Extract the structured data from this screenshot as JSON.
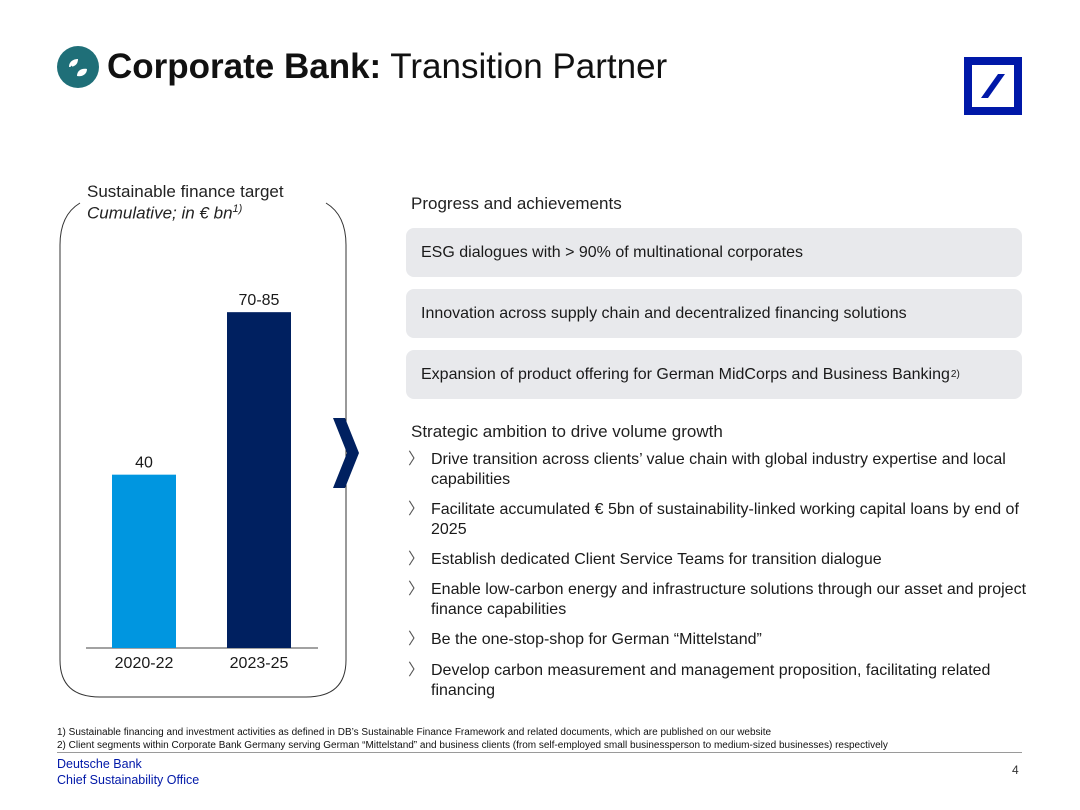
{
  "header": {
    "title_bold": "Corporate Bank:",
    "title_light": " Transition Partner",
    "icon": "leaf-icon",
    "icon_color": "#1f6f78"
  },
  "logo": {
    "icon": "deutsche-bank-logo",
    "color": "#0018a8"
  },
  "chart_data": {
    "type": "bar",
    "title": "Sustainable finance target",
    "subtitle": "Cumulative; in € bn",
    "subtitle_note": "1)",
    "categories": [
      "2020-22",
      "2023-25"
    ],
    "values": [
      40,
      77.5
    ],
    "labels": [
      "40",
      "70-85"
    ],
    "colors": [
      "#0096e0",
      "#002060"
    ],
    "ylim": [
      0,
      90
    ],
    "grid": false,
    "xlabel": "",
    "ylabel": ""
  },
  "progress": {
    "heading": "Progress and achievements",
    "items": [
      {
        "text": "ESG dialogues with > 90% of multinational corporates",
        "note": ""
      },
      {
        "text": "Innovation across supply chain and decentralized financing solutions",
        "note": ""
      },
      {
        "text": "Expansion of product offering for German MidCorps and Business Banking",
        "note": "2)"
      }
    ]
  },
  "ambition": {
    "heading": "Strategic ambition to drive volume growth",
    "bullet_glyph": "〉",
    "items": [
      "Drive transition across clients’ value chain with global industry expertise and local capabilities",
      "Facilitate accumulated € 5bn of sustainability-linked working capital loans by end of 2025",
      "Establish dedicated Client Service Teams for transition dialogue",
      "Enable low-carbon energy and infrastructure solutions through our asset and project finance capabilities",
      "Be the one-stop-shop for German “Mittelstand”",
      "Develop carbon measurement and management proposition, facilitating related financing"
    ]
  },
  "footnotes": [
    "1) Sustainable financing and investment activities as defined in DB’s Sustainable Finance Framework and related documents, which are published on our website",
    "2) Client segments within Corporate Bank Germany serving German “Mittelstand” and business clients (from self-employed small businessperson to medium-sized businesses) respectively"
  ],
  "footer": {
    "brand_line1": "Deutsche Bank",
    "brand_line2": "Chief Sustainability Office",
    "page_number": "4"
  }
}
